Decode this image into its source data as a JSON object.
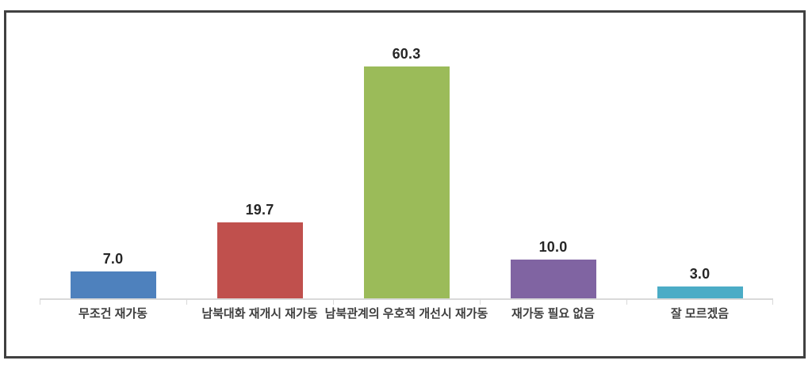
{
  "chart_data": {
    "type": "bar",
    "categories": [
      "무조건 재가동",
      "남북대화 재개시 재가동",
      "남북관계의 우호적 개선시 재가동",
      "재가동 필요 없음",
      "잘 모르겠음"
    ],
    "values": [
      7.0,
      19.7,
      60.3,
      10.0,
      3.0
    ],
    "value_labels": [
      "7.0",
      "19.7",
      "60.3",
      "10.0",
      "3.0"
    ],
    "colors": [
      "#4E81BD",
      "#C0504D",
      "#9BBB59",
      "#8064A2",
      "#4BACC6"
    ],
    "title": "",
    "xlabel": "",
    "ylabel": "",
    "ylim": [
      0,
      70
    ],
    "grid": false,
    "legend": "none",
    "axis_line_color": "#D9D9D9",
    "frame_border_color": "#404040",
    "value_label_color": "#262626",
    "category_label_color": "#3F3F3F"
  }
}
